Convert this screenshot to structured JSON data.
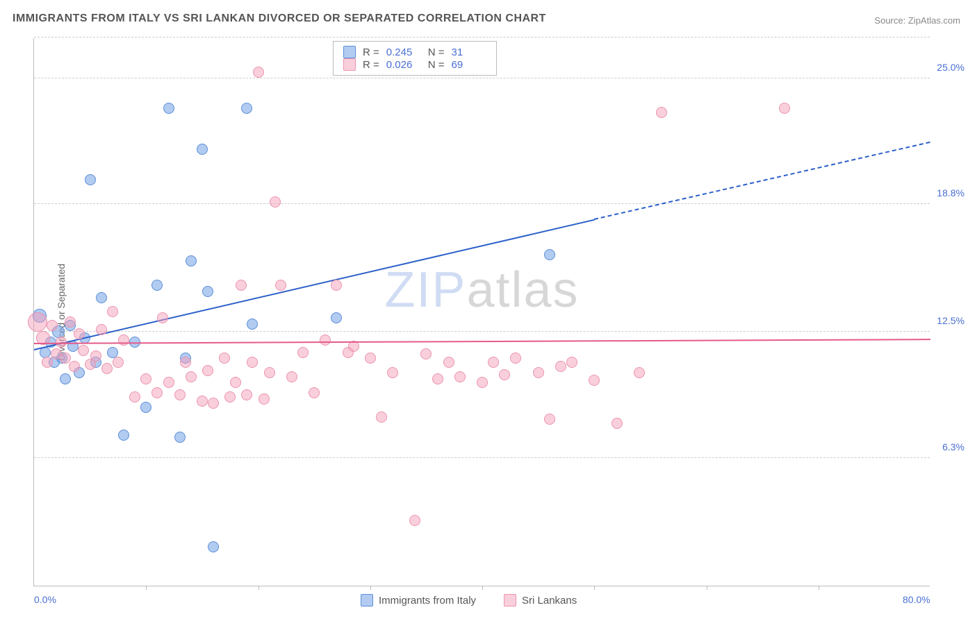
{
  "title": "IMMIGRANTS FROM ITALY VS SRI LANKAN DIVORCED OR SEPARATED CORRELATION CHART",
  "source_label": "Source:",
  "source_name": "ZipAtlas.com",
  "ylabel": "Divorced or Separated",
  "watermark": {
    "part1": "ZIP",
    "part2": "atlas"
  },
  "chart": {
    "type": "scatter",
    "background_color": "#ffffff",
    "grid_color": "#cccccc",
    "axis_color": "#bbbbbb",
    "xlim": [
      0,
      80
    ],
    "ylim": [
      0,
      27
    ],
    "x_ticks": [
      0,
      80
    ],
    "x_tick_labels": [
      "0.0%",
      "80.0%"
    ],
    "x_tick_marks": [
      10,
      20,
      30,
      40,
      50,
      60,
      70
    ],
    "y_gridlines": [
      6.3,
      12.5,
      18.8,
      25.0,
      27
    ],
    "y_tick_labels": [
      "6.3%",
      "12.5%",
      "18.8%",
      "25.0%"
    ],
    "ytick_color": "#4a6fd4",
    "xtick_color": "#4a6fd4",
    "tick_fontsize": 14,
    "ylabel_fontsize": 14,
    "ylabel_color": "#666666",
    "series": [
      {
        "name": "Immigrants from Italy",
        "fill_color": "rgba(115,160,230,0.55)",
        "stroke_color": "#5b8fd8",
        "line_color": "#2a5fc9",
        "R": "0.245",
        "N": "31",
        "trend": {
          "x1": 0,
          "y1": 11.6,
          "x2_solid": 50,
          "y2_solid": 18.0,
          "x2": 80,
          "y2": 21.8
        },
        "points": [
          {
            "x": 0.5,
            "y": 13.3,
            "r": 10
          },
          {
            "x": 1,
            "y": 11.5,
            "r": 8
          },
          {
            "x": 1.5,
            "y": 12.0,
            "r": 8
          },
          {
            "x": 1.8,
            "y": 11.0,
            "r": 8
          },
          {
            "x": 2.2,
            "y": 12.5,
            "r": 9
          },
          {
            "x": 2.5,
            "y": 11.2,
            "r": 8
          },
          {
            "x": 2.8,
            "y": 10.2,
            "r": 8
          },
          {
            "x": 3.2,
            "y": 12.8,
            "r": 8
          },
          {
            "x": 3.5,
            "y": 11.8,
            "r": 8
          },
          {
            "x": 4,
            "y": 10.5,
            "r": 8
          },
          {
            "x": 4.5,
            "y": 12.2,
            "r": 8
          },
          {
            "x": 5,
            "y": 20.0,
            "r": 8
          },
          {
            "x": 5.5,
            "y": 11.0,
            "r": 8
          },
          {
            "x": 6,
            "y": 14.2,
            "r": 8
          },
          {
            "x": 7,
            "y": 11.5,
            "r": 8
          },
          {
            "x": 8,
            "y": 7.4,
            "r": 8
          },
          {
            "x": 9,
            "y": 12.0,
            "r": 8
          },
          {
            "x": 10,
            "y": 8.8,
            "r": 8
          },
          {
            "x": 11,
            "y": 14.8,
            "r": 8
          },
          {
            "x": 12,
            "y": 23.5,
            "r": 8
          },
          {
            "x": 13,
            "y": 7.3,
            "r": 8
          },
          {
            "x": 13.5,
            "y": 11.2,
            "r": 8
          },
          {
            "x": 14,
            "y": 16.0,
            "r": 8
          },
          {
            "x": 15,
            "y": 21.5,
            "r": 8
          },
          {
            "x": 15.5,
            "y": 14.5,
            "r": 8
          },
          {
            "x": 16,
            "y": 1.9,
            "r": 8
          },
          {
            "x": 19,
            "y": 23.5,
            "r": 8
          },
          {
            "x": 19.5,
            "y": 12.9,
            "r": 8
          },
          {
            "x": 27,
            "y": 13.2,
            "r": 8
          },
          {
            "x": 46,
            "y": 16.3,
            "r": 8
          }
        ]
      },
      {
        "name": "Sri Lankans",
        "fill_color": "rgba(245,160,185,0.50)",
        "stroke_color": "#ea94ae",
        "line_color": "#e55a8a",
        "R": "0.026",
        "N": "69",
        "trend": {
          "x1": 0,
          "y1": 11.9,
          "x2_solid": 80,
          "y2_solid": 12.1,
          "x2": 80,
          "y2": 12.1
        },
        "points": [
          {
            "x": 0.3,
            "y": 13.0,
            "r": 14
          },
          {
            "x": 0.8,
            "y": 12.2,
            "r": 10
          },
          {
            "x": 1.2,
            "y": 11.0,
            "r": 8
          },
          {
            "x": 1.6,
            "y": 12.8,
            "r": 8
          },
          {
            "x": 2,
            "y": 11.4,
            "r": 8
          },
          {
            "x": 2.4,
            "y": 12.0,
            "r": 8
          },
          {
            "x": 2.8,
            "y": 11.2,
            "r": 8
          },
          {
            "x": 3.2,
            "y": 13.0,
            "r": 8
          },
          {
            "x": 3.6,
            "y": 10.8,
            "r": 8
          },
          {
            "x": 4,
            "y": 12.4,
            "r": 8
          },
          {
            "x": 4.4,
            "y": 11.6,
            "r": 8
          },
          {
            "x": 5,
            "y": 10.9,
            "r": 8
          },
          {
            "x": 5.5,
            "y": 11.3,
            "r": 8
          },
          {
            "x": 6,
            "y": 12.6,
            "r": 8
          },
          {
            "x": 6.5,
            "y": 10.7,
            "r": 8
          },
          {
            "x": 7,
            "y": 13.5,
            "r": 8
          },
          {
            "x": 7.5,
            "y": 11.0,
            "r": 8
          },
          {
            "x": 8,
            "y": 12.1,
            "r": 8
          },
          {
            "x": 9,
            "y": 9.3,
            "r": 8
          },
          {
            "x": 10,
            "y": 10.2,
            "r": 8
          },
          {
            "x": 11,
            "y": 9.5,
            "r": 8
          },
          {
            "x": 11.5,
            "y": 13.2,
            "r": 8
          },
          {
            "x": 12,
            "y": 10.0,
            "r": 8
          },
          {
            "x": 13,
            "y": 9.4,
            "r": 8
          },
          {
            "x": 13.5,
            "y": 11.0,
            "r": 8
          },
          {
            "x": 14,
            "y": 10.3,
            "r": 8
          },
          {
            "x": 15,
            "y": 9.1,
            "r": 8
          },
          {
            "x": 15.5,
            "y": 10.6,
            "r": 8
          },
          {
            "x": 16,
            "y": 9.0,
            "r": 8
          },
          {
            "x": 17,
            "y": 11.2,
            "r": 8
          },
          {
            "x": 17.5,
            "y": 9.3,
            "r": 8
          },
          {
            "x": 18,
            "y": 10.0,
            "r": 8
          },
          {
            "x": 18.5,
            "y": 14.8,
            "r": 8
          },
          {
            "x": 19,
            "y": 9.4,
            "r": 8
          },
          {
            "x": 19.5,
            "y": 11.0,
            "r": 8
          },
          {
            "x": 20,
            "y": 25.3,
            "r": 8
          },
          {
            "x": 20.5,
            "y": 9.2,
            "r": 8
          },
          {
            "x": 21,
            "y": 10.5,
            "r": 8
          },
          {
            "x": 21.5,
            "y": 18.9,
            "r": 8
          },
          {
            "x": 22,
            "y": 14.8,
            "r": 8
          },
          {
            "x": 23,
            "y": 10.3,
            "r": 8
          },
          {
            "x": 24,
            "y": 11.5,
            "r": 8
          },
          {
            "x": 25,
            "y": 9.5,
            "r": 8
          },
          {
            "x": 26,
            "y": 12.1,
            "r": 8
          },
          {
            "x": 27,
            "y": 14.8,
            "r": 8
          },
          {
            "x": 28,
            "y": 11.5,
            "r": 8
          },
          {
            "x": 28.5,
            "y": 11.8,
            "r": 8
          },
          {
            "x": 30,
            "y": 11.2,
            "r": 8
          },
          {
            "x": 31,
            "y": 8.3,
            "r": 8
          },
          {
            "x": 32,
            "y": 10.5,
            "r": 8
          },
          {
            "x": 34,
            "y": 3.2,
            "r": 8
          },
          {
            "x": 35,
            "y": 11.4,
            "r": 8
          },
          {
            "x": 36,
            "y": 10.2,
            "r": 8
          },
          {
            "x": 37,
            "y": 11.0,
            "r": 8
          },
          {
            "x": 38,
            "y": 10.3,
            "r": 8
          },
          {
            "x": 40,
            "y": 10.0,
            "r": 8
          },
          {
            "x": 41,
            "y": 11.0,
            "r": 8
          },
          {
            "x": 42,
            "y": 10.4,
            "r": 8
          },
          {
            "x": 43,
            "y": 11.2,
            "r": 8
          },
          {
            "x": 45,
            "y": 10.5,
            "r": 8
          },
          {
            "x": 46,
            "y": 8.2,
            "r": 8
          },
          {
            "x": 47,
            "y": 10.8,
            "r": 8
          },
          {
            "x": 48,
            "y": 11.0,
            "r": 8
          },
          {
            "x": 50,
            "y": 10.1,
            "r": 8
          },
          {
            "x": 52,
            "y": 8.0,
            "r": 8
          },
          {
            "x": 54,
            "y": 10.5,
            "r": 8
          },
          {
            "x": 56,
            "y": 23.3,
            "r": 8
          },
          {
            "x": 67,
            "y": 23.5,
            "r": 8
          }
        ]
      }
    ]
  },
  "legend_top": {
    "r_label": "R =",
    "n_label": "N ="
  },
  "legend_bottom_labels": [
    "Immigrants from Italy",
    "Sri Lankans"
  ]
}
